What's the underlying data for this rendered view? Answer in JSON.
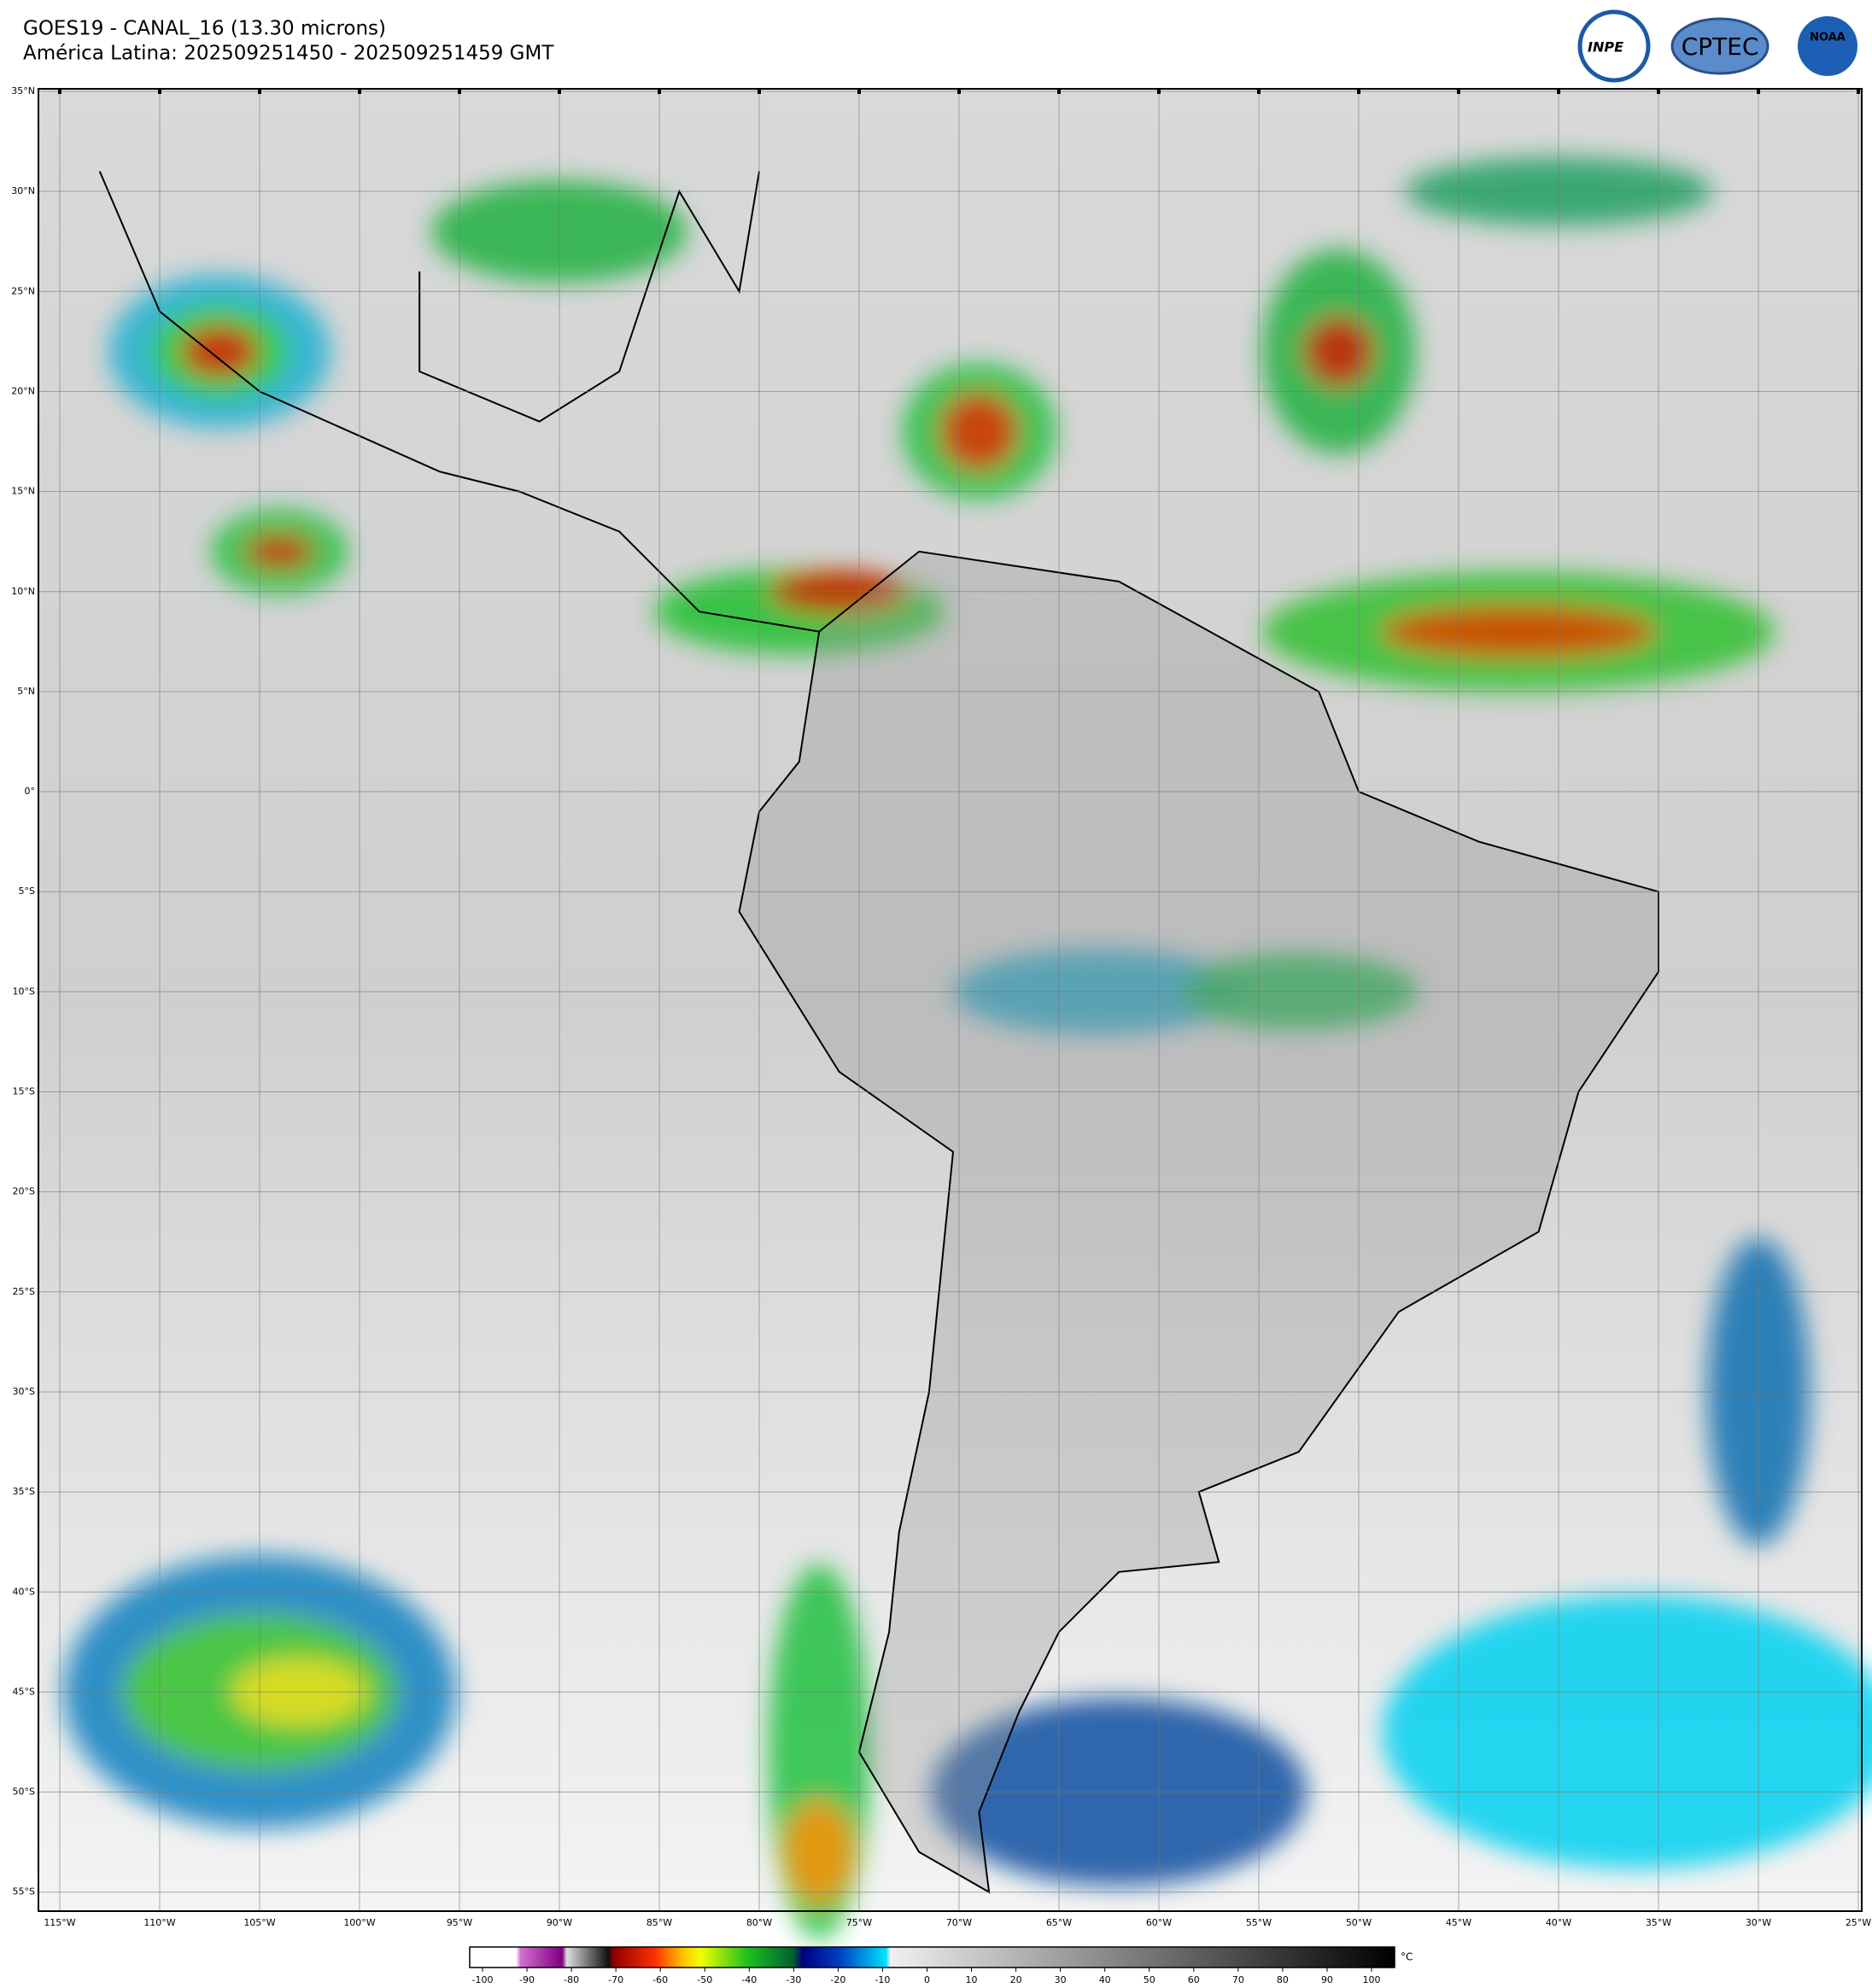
{
  "header": {
    "title": "GOES19 - CANAL_16 (13.30 microns)",
    "subtitle": "América Latina: 202509251450 - 202509251459 GMT"
  },
  "logos": [
    "INPE",
    "CPTEC",
    "NOAA"
  ],
  "map": {
    "grid": true,
    "lat_ticks": [
      {
        "value": 35,
        "label": "35°N"
      },
      {
        "value": 30,
        "label": "30°N"
      },
      {
        "value": 25,
        "label": "25°N"
      },
      {
        "value": 20,
        "label": "20°N"
      },
      {
        "value": 15,
        "label": "15°N"
      },
      {
        "value": 10,
        "label": "10°N"
      },
      {
        "value": 5,
        "label": "5°N"
      },
      {
        "value": 0,
        "label": "0°"
      },
      {
        "value": -5,
        "label": "5°S"
      },
      {
        "value": -10,
        "label": "10°S"
      },
      {
        "value": -15,
        "label": "15°S"
      },
      {
        "value": -20,
        "label": "20°S"
      },
      {
        "value": -25,
        "label": "25°S"
      },
      {
        "value": -30,
        "label": "30°S"
      },
      {
        "value": -35,
        "label": "35°S"
      },
      {
        "value": -40,
        "label": "40°S"
      },
      {
        "value": -45,
        "label": "45°S"
      },
      {
        "value": -50,
        "label": "50°S"
      },
      {
        "value": -55,
        "label": "55°S"
      }
    ],
    "lon_ticks": [
      {
        "value": -115,
        "label": "115°W"
      },
      {
        "value": -110,
        "label": "110°W"
      },
      {
        "value": -105,
        "label": "105°W"
      },
      {
        "value": -100,
        "label": "100°W"
      },
      {
        "value": -95,
        "label": "95°W"
      },
      {
        "value": -90,
        "label": "90°W"
      },
      {
        "value": -85,
        "label": "85°W"
      },
      {
        "value": -80,
        "label": "80°W"
      },
      {
        "value": -75,
        "label": "75°W"
      },
      {
        "value": -70,
        "label": "70°W"
      },
      {
        "value": -65,
        "label": "65°W"
      },
      {
        "value": -60,
        "label": "60°W"
      },
      {
        "value": -55,
        "label": "55°W"
      },
      {
        "value": -50,
        "label": "50°W"
      },
      {
        "value": -45,
        "label": "45°W"
      },
      {
        "value": -40,
        "label": "40°W"
      },
      {
        "value": -35,
        "label": "35°W"
      },
      {
        "value": -30,
        "label": "30°W"
      },
      {
        "value": -25,
        "label": "25°W"
      }
    ]
  },
  "colorbar": {
    "ticks": [
      -100,
      -90,
      -80,
      -70,
      -60,
      -50,
      -40,
      -30,
      -20,
      -10,
      0,
      10,
      20,
      30,
      40,
      50,
      60,
      70,
      80,
      90,
      100
    ],
    "unit": "°C"
  }
}
